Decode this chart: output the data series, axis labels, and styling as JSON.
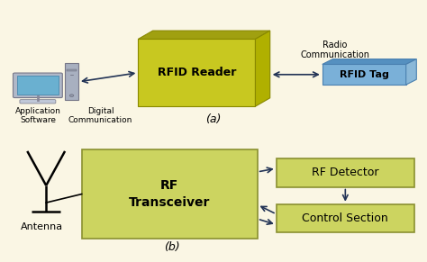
{
  "bg_color": "#faf6e4",
  "rfid_reader_color": "#c8c820",
  "rfid_reader_edge": "#888800",
  "rfid_reader_dark": "#a0a010",
  "rfid_tag_color": "#7ab0d8",
  "rfid_tag_edge": "#4a80b0",
  "rf_box_color": "#ccd460",
  "rf_box_edge": "#8a9030",
  "label_a": "(a)",
  "label_b": "(b)",
  "text_rfid_reader": "RFID Reader",
  "text_rfid_tag": "RFID Tag",
  "text_radio_comm": "Radio\nCommunication",
  "text_app_software": "Application\nSoftware",
  "text_digital_comm": "Digital\nCommunication",
  "text_rf_transceiver": "RF\nTransceiver",
  "text_rf_detector": "RF Detector",
  "text_control_section": "Control Section",
  "text_antenna": "Antenna",
  "arrow_color": "#223355",
  "monitor_outer": "#b0b8c8",
  "monitor_screen": "#6ab0d0",
  "monitor_stand": "#a0a8b8",
  "monitor_base": "#c0c8d8",
  "tower_color": "#a8b0c0",
  "tower_dark": "#888fa0"
}
